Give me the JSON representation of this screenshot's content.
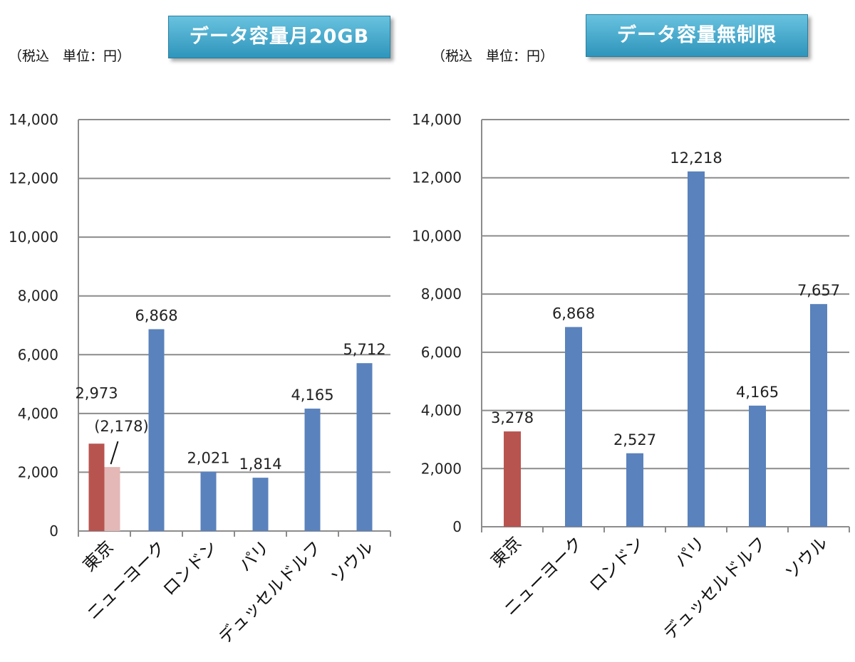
{
  "left_panel": {
    "unit_note": "（税込　単位：円）",
    "title": "データ容量月20GB"
  },
  "right_panel": {
    "unit_note": "（税込　単位：円）",
    "title": "データ容量無制限"
  },
  "colors": {
    "tokyo": "#b85450",
    "tokyo_light": "#e4b8b6",
    "other": "#5a82bc",
    "grid": "#8c8c8c"
  },
  "chart_data": [
    {
      "type": "bar",
      "title": "データ容量月20GB",
      "categories": [
        "東京",
        "ニューヨーク",
        "ロンドン",
        "パリ",
        "デュッセルドルフ",
        "ソウル"
      ],
      "values": [
        2973,
        6868,
        2021,
        1814,
        4165,
        5712
      ],
      "value_labels": [
        "2,973",
        "6,868",
        "2,021",
        "1,814",
        "4,165",
        "5,712"
      ],
      "secondary": {
        "category": "東京",
        "value": 2178,
        "label": "(2,178)"
      },
      "ylim": [
        0,
        14000
      ],
      "yticks": [
        0,
        2000,
        4000,
        6000,
        8000,
        10000,
        12000,
        14000
      ],
      "ytick_labels": [
        "0",
        "2,000",
        "4,000",
        "6,000",
        "8,000",
        "10,000",
        "12,000",
        "14,000"
      ],
      "grid": true
    },
    {
      "type": "bar",
      "title": "データ容量無制限",
      "categories": [
        "東京",
        "ニューヨーク",
        "ロンドン",
        "パリ",
        "デュッセルドルフ",
        "ソウル"
      ],
      "values": [
        3278,
        6868,
        2527,
        12218,
        4165,
        7657
      ],
      "value_labels": [
        "3,278",
        "6,868",
        "2,527",
        "12,218",
        "4,165",
        "7,657"
      ],
      "ylim": [
        0,
        14000
      ],
      "yticks": [
        0,
        2000,
        4000,
        6000,
        8000,
        10000,
        12000,
        14000
      ],
      "ytick_labels": [
        "0",
        "2,000",
        "4,000",
        "6,000",
        "8,000",
        "10,000",
        "12,000",
        "14,000"
      ],
      "grid": true
    }
  ]
}
